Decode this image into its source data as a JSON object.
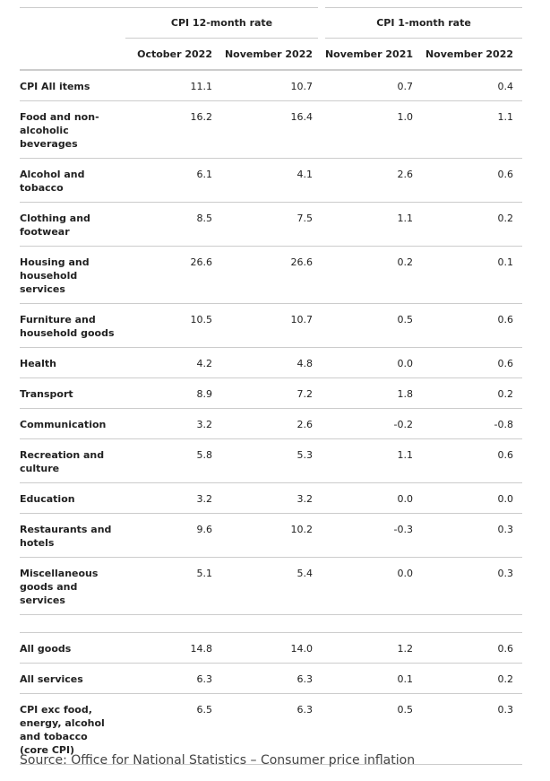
{
  "table": {
    "group_headers": [
      "CPI 12-month rate",
      "CPI 1-month rate"
    ],
    "column_headers": [
      "October 2022",
      "November 2022",
      "November 2021",
      "November 2022"
    ],
    "rows": [
      [
        "CPI All items",
        "11.1",
        "10.7",
        "0.7",
        "0.4"
      ],
      [
        "Food and non-alcoholic beverages",
        "16.2",
        "16.4",
        "1.0",
        "1.1"
      ],
      [
        "Alcohol and tobacco",
        "6.1",
        "4.1",
        "2.6",
        "0.6"
      ],
      [
        "Clothing and footwear",
        "8.5",
        "7.5",
        "1.1",
        "0.2"
      ],
      [
        "Housing and household services",
        "26.6",
        "26.6",
        "0.2",
        "0.1"
      ],
      [
        "Furniture and household goods",
        "10.5",
        "10.7",
        "0.5",
        "0.6"
      ],
      [
        "Health",
        "4.2",
        "4.8",
        "0.0",
        "0.6"
      ],
      [
        "Transport",
        "8.9",
        "7.2",
        "1.8",
        "0.2"
      ],
      [
        "Communication",
        "3.2",
        "2.6",
        "-0.2",
        "-0.8"
      ],
      [
        "Recreation and culture",
        "5.8",
        "5.3",
        "1.1",
        "0.6"
      ],
      [
        "Education",
        "3.2",
        "3.2",
        "0.0",
        "0.0"
      ],
      [
        "Restaurants and hotels",
        "9.6",
        "10.2",
        "-0.3",
        "0.3"
      ],
      [
        "Miscellaneous goods and services",
        "5.1",
        "5.4",
        "0.0",
        "0.3"
      ]
    ],
    "summary_rows": [
      [
        "All goods",
        "14.8",
        "14.0",
        "1.2",
        "0.6"
      ],
      [
        "All services",
        "6.3",
        "6.3",
        "0.1",
        "0.2"
      ],
      [
        "CPI exc food, energy, alcohol and tobacco (core CPI)",
        "6.5",
        "6.3",
        "0.5",
        "0.3"
      ]
    ]
  },
  "source": "Source: Office for National Statistics – Consumer price inflation"
}
